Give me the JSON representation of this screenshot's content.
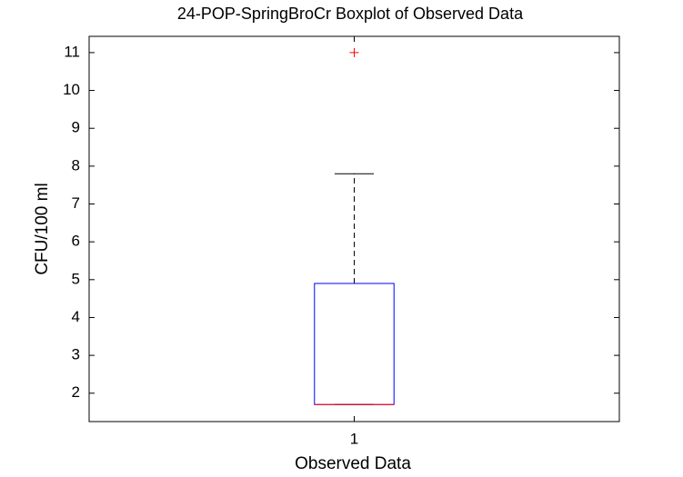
{
  "chart_data": {
    "type": "box",
    "title": "24-POP-SpringBroCr Boxplot of Observed Data",
    "x_label": "Observed Data",
    "y_label": "CFU/100 ml",
    "x": [
      1
    ],
    "series": [
      {
        "whisker_low": 1.7,
        "q1": 1.7,
        "median": 1.7,
        "q3": 4.9,
        "whisker_high": 7.8,
        "outliers": [
          11
        ],
        "box_color": "#0000ff",
        "median_color": "#ff0000",
        "whisker_color": "#000000",
        "outlier_color": "#ff0000"
      }
    ],
    "xlim": [
      0.5,
      1.5
    ],
    "xticks": [
      1
    ],
    "ylim": [
      1.25,
      11.43
    ],
    "yticks": [
      2,
      3,
      4,
      5,
      6,
      7,
      8,
      9,
      10,
      11
    ]
  }
}
